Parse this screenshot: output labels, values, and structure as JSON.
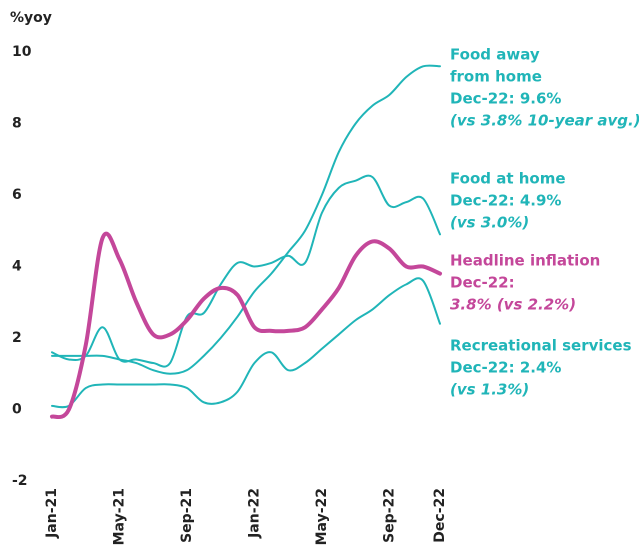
{
  "chart_data": {
    "type": "line",
    "y_label": "%yoy",
    "categories": [
      "Jan-21",
      null,
      null,
      null,
      "May-21",
      null,
      null,
      null,
      "Sep-21",
      null,
      null,
      null,
      "Jan-22",
      null,
      null,
      null,
      "May-22",
      null,
      null,
      null,
      "Sep-22",
      null,
      null,
      "Dec-22"
    ],
    "ylim": [
      -2,
      10
    ],
    "yticks": [
      -2,
      0,
      2,
      4,
      6,
      8,
      10
    ],
    "grid": false,
    "series": [
      {
        "name": "Food away from home",
        "color": "#20b5b8",
        "width": 2,
        "values": [
          1.5,
          1.5,
          1.5,
          1.5,
          1.4,
          1.3,
          1.1,
          1.0,
          1.1,
          1.5,
          2.0,
          2.6,
          3.3,
          3.8,
          4.4,
          5.0,
          6.0,
          7.2,
          8.0,
          8.5,
          8.8,
          9.3,
          9.6,
          9.6
        ]
      },
      {
        "name": "Food at home",
        "color": "#20b5b8",
        "width": 2,
        "values": [
          1.6,
          1.4,
          1.5,
          2.3,
          1.4,
          1.4,
          1.3,
          1.3,
          2.6,
          2.7,
          3.5,
          4.1,
          4.0,
          4.1,
          4.3,
          4.1,
          5.5,
          6.2,
          6.4,
          6.5,
          5.7,
          5.8,
          5.9,
          4.9
        ]
      },
      {
        "name": "Recreational services",
        "color": "#20b5b8",
        "width": 2,
        "values": [
          0.1,
          0.1,
          0.6,
          0.7,
          0.7,
          0.7,
          0.7,
          0.7,
          0.6,
          0.2,
          0.2,
          0.5,
          1.3,
          1.6,
          1.1,
          1.3,
          1.7,
          2.1,
          2.5,
          2.8,
          3.2,
          3.5,
          3.6,
          2.4
        ]
      },
      {
        "name": "Headline inflation",
        "color": "#c4479a",
        "width": 4,
        "values": [
          -0.2,
          0.0,
          1.8,
          4.8,
          4.2,
          3.0,
          2.1,
          2.1,
          2.5,
          3.1,
          3.4,
          3.2,
          2.3,
          2.2,
          2.2,
          2.3,
          2.8,
          3.4,
          4.3,
          4.7,
          4.5,
          4.0,
          4.0,
          3.8
        ]
      }
    ],
    "annotations": [
      {
        "color": "#20b5b8",
        "lines": [
          {
            "text": "Food away",
            "italic": false
          },
          {
            "text": "from home",
            "italic": false
          },
          {
            "text": "Dec-22: 9.6%",
            "italic": false
          },
          {
            "text": "(vs 3.8% 10-year avg.)",
            "italic": true
          }
        ]
      },
      {
        "color": "#20b5b8",
        "lines": [
          {
            "text": "Food at home",
            "italic": false
          },
          {
            "text": "Dec-22: 4.9%",
            "italic": false
          },
          {
            "text": "(vs 3.0%)",
            "italic": true
          }
        ]
      },
      {
        "color": "#c4479a",
        "lines": [
          {
            "text": "Headline inflation",
            "italic": false
          },
          {
            "text": "Dec-22:",
            "italic": false
          },
          {
            "text": "3.8% (vs 2.2%)",
            "italic": true
          }
        ]
      },
      {
        "color": "#20b5b8",
        "lines": [
          {
            "text": "Recreational services",
            "italic": false
          },
          {
            "text": "Dec-22: 2.4%",
            "italic": false
          },
          {
            "text": "(vs 1.3%)",
            "italic": true
          }
        ]
      }
    ]
  }
}
